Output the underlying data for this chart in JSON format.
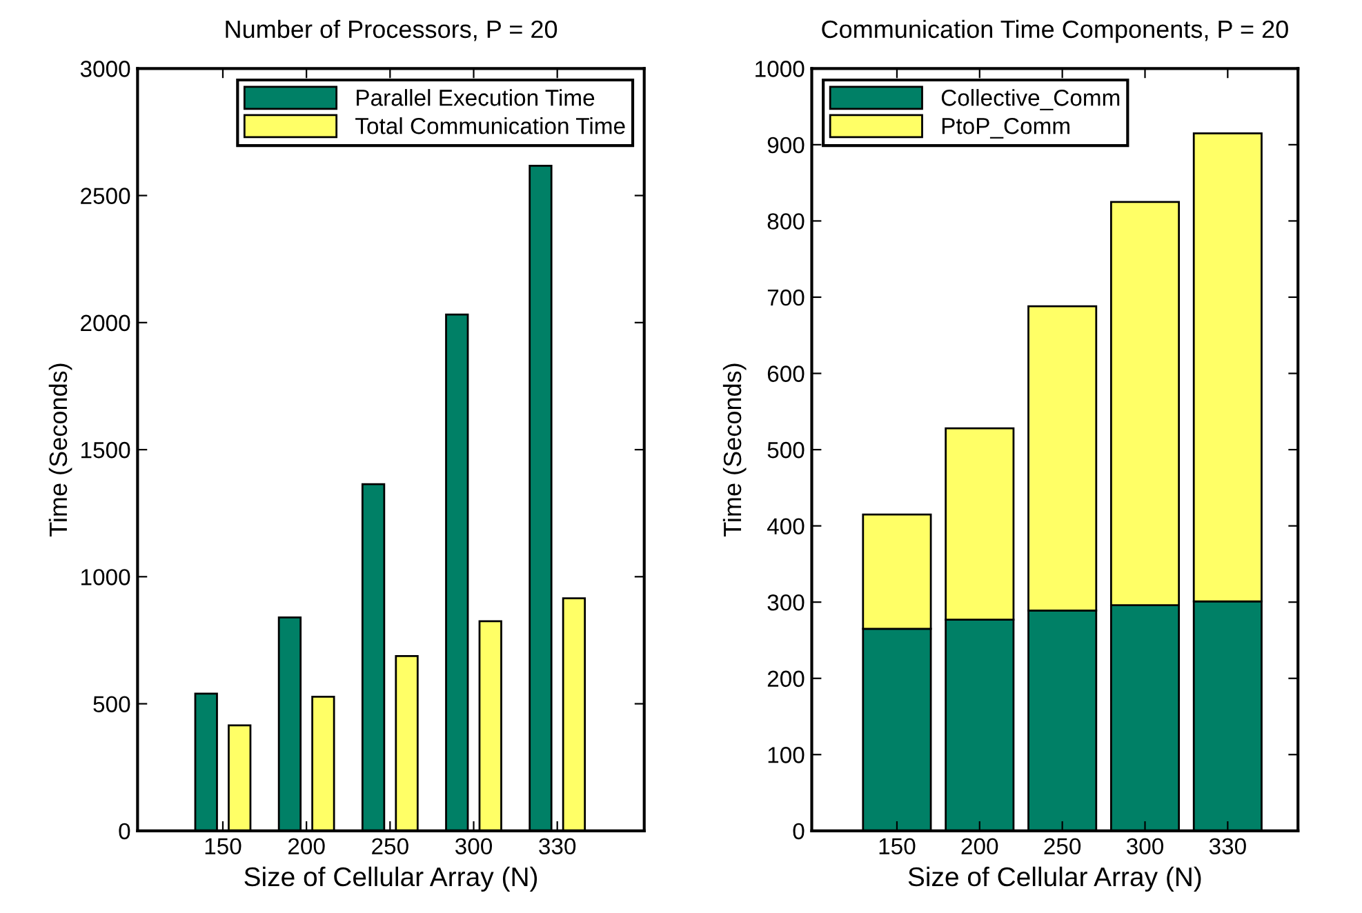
{
  "chart_data": [
    {
      "type": "bar",
      "title": "Number of Processors, P = 20",
      "xlabel": "Size of Cellular Array (N)",
      "ylabel": "Time (Seconds)",
      "categories": [
        "150",
        "200",
        "250",
        "300",
        "330"
      ],
      "series": [
        {
          "name": "Parallel Execution Time",
          "color": "#008066",
          "values": [
            540,
            840,
            1364,
            2032,
            2617
          ]
        },
        {
          "name": "Total Communication Time",
          "color": "#ffff66",
          "values": [
            415,
            528,
            688,
            825,
            915
          ]
        }
      ],
      "ylim": [
        0,
        3000
      ],
      "yticks": [
        0,
        500,
        1000,
        1500,
        2000,
        2500,
        3000
      ],
      "grid": false,
      "legend": "top right"
    },
    {
      "type": "bar",
      "title": "Communication Time Components, P = 20",
      "xlabel": "Size of Cellular Array (N)",
      "ylabel": "Time (Seconds)",
      "categories": [
        "150",
        "200",
        "250",
        "300",
        "330"
      ],
      "stacked": true,
      "series": [
        {
          "name": "Collective_Comm",
          "color": "#008066",
          "values": [
            265,
            277,
            289,
            296,
            301
          ]
        },
        {
          "name": "PtoP_Comm",
          "color": "#ffff66",
          "values": [
            150,
            251,
            399,
            529,
            614
          ]
        }
      ],
      "ylim": [
        0,
        1000
      ],
      "yticks": [
        0,
        100,
        200,
        300,
        400,
        500,
        600,
        700,
        800,
        900,
        1000
      ],
      "grid": false,
      "legend": "top left"
    }
  ]
}
